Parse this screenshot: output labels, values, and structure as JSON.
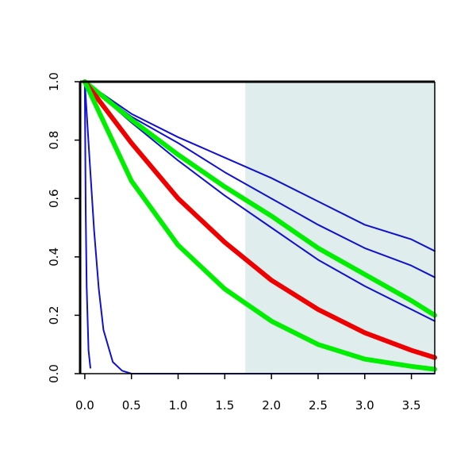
{
  "chart_data": {
    "type": "line",
    "title": "",
    "xlabel": "",
    "ylabel": "",
    "xlim": [
      -0.05,
      3.75
    ],
    "ylim": [
      0.0,
      1.0
    ],
    "x_ticks": [
      {
        "value": 0.0,
        "label": "0.0"
      },
      {
        "value": 0.5,
        "label": "0.5"
      },
      {
        "value": 1.0,
        "label": "1.0"
      },
      {
        "value": 1.5,
        "label": "1.5"
      },
      {
        "value": 2.0,
        "label": "2.0"
      },
      {
        "value": 2.5,
        "label": "2.5"
      },
      {
        "value": 3.0,
        "label": "3.0"
      },
      {
        "value": 3.5,
        "label": "3.5"
      }
    ],
    "y_ticks": [
      {
        "value": 0.0,
        "label": "0.0"
      },
      {
        "value": 0.2,
        "label": "0.2"
      },
      {
        "value": 0.4,
        "label": "0.4"
      },
      {
        "value": 0.6,
        "label": "0.6"
      },
      {
        "value": 0.8,
        "label": "0.8"
      },
      {
        "value": 1.0,
        "label": "1.0"
      }
    ],
    "grid": false,
    "legend": "none",
    "shaded_region": {
      "x_from": 1.72,
      "x_to": 3.75,
      "color": "#dfeded"
    },
    "series": [
      {
        "color": "#1010d0",
        "emphasis": "thin",
        "x": [
          0,
          0.01,
          0.02,
          0.04,
          0.06
        ],
        "y": [
          1.0,
          0.55,
          0.3,
          0.08,
          0.02
        ]
      },
      {
        "color": "#1010d0",
        "emphasis": "thin",
        "x": [
          0,
          0.05,
          0.1,
          0.15,
          0.2,
          0.3,
          0.4,
          0.5,
          0.6,
          0.8,
          1.0,
          3.75
        ],
        "y": [
          1.0,
          0.74,
          0.49,
          0.29,
          0.15,
          0.04,
          0.01,
          0.0,
          0.0,
          0.0,
          0.0,
          0.0
        ]
      },
      {
        "color": "#1010d0",
        "emphasis": "thin",
        "x": [
          0,
          0.5,
          1.0,
          1.5,
          2.0,
          2.5,
          3.0,
          3.5,
          3.75
        ],
        "y": [
          1.0,
          0.89,
          0.81,
          0.74,
          0.67,
          0.59,
          0.51,
          0.46,
          0.42
        ]
      },
      {
        "color": "#1010d0",
        "emphasis": "thin",
        "x": [
          0,
          0.5,
          1.0,
          1.5,
          2.0,
          2.5,
          3.0,
          3.5,
          3.75
        ],
        "y": [
          1.0,
          0.88,
          0.79,
          0.69,
          0.6,
          0.51,
          0.43,
          0.37,
          0.33
        ]
      },
      {
        "color": "#1010d0",
        "emphasis": "thin",
        "x": [
          0,
          0.5,
          1.0,
          1.5,
          2.0,
          2.5,
          3.0,
          3.5,
          3.75
        ],
        "y": [
          1.0,
          0.86,
          0.73,
          0.61,
          0.5,
          0.39,
          0.3,
          0.22,
          0.18
        ]
      },
      {
        "color": "#00ee00",
        "emphasis": "thick",
        "x": [
          0,
          0.5,
          1.0,
          1.5,
          2.0,
          2.5,
          3.0,
          3.5,
          3.75
        ],
        "y": [
          1.0,
          0.87,
          0.75,
          0.64,
          0.54,
          0.43,
          0.34,
          0.25,
          0.2
        ]
      },
      {
        "color": "#ee0000",
        "emphasis": "thick",
        "x": [
          0,
          0.5,
          1.0,
          1.5,
          2.0,
          2.5,
          3.0,
          3.5,
          3.75
        ],
        "y": [
          1.0,
          0.79,
          0.6,
          0.45,
          0.32,
          0.22,
          0.14,
          0.08,
          0.055
        ]
      },
      {
        "color": "#00ee00",
        "emphasis": "thick",
        "x": [
          0,
          0.5,
          1.0,
          1.5,
          2.0,
          2.5,
          3.0,
          3.5,
          3.75
        ],
        "y": [
          1.0,
          0.66,
          0.44,
          0.29,
          0.18,
          0.1,
          0.05,
          0.025,
          0.015
        ]
      }
    ]
  }
}
